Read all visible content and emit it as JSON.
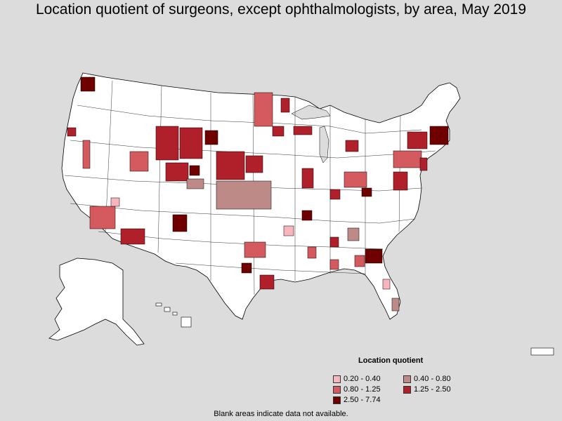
{
  "title": "Location quotient of surgeons, except ophthalmologists, by area, May 2019",
  "legend": {
    "title": "Location quotient",
    "items": [
      {
        "label": "0.20 - 0.40",
        "color": "#f7b6bd"
      },
      {
        "label": "0.40 - 0.80",
        "color": "#bd8a88"
      },
      {
        "label": "0.80 - 1.25",
        "color": "#d45a5f"
      },
      {
        "label": "1.25 - 2.50",
        "color": "#b0202a"
      },
      {
        "label": "2.50 - 7.74",
        "color": "#6e0000"
      }
    ]
  },
  "footnote": "Blank areas indicate data not available.",
  "colors": {
    "background": "#dcdcdc",
    "land": "#ffffff",
    "border": "#000000"
  }
}
